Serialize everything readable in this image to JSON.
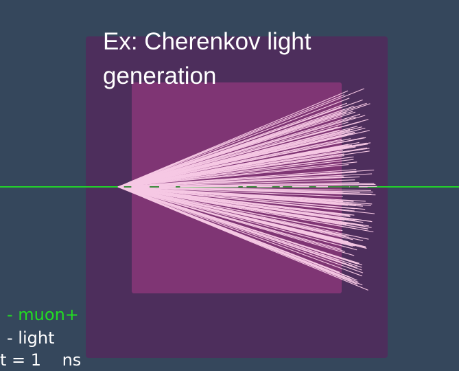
{
  "title": {
    "lines": [
      "Ex: Cherenkov light",
      "generation"
    ]
  },
  "legend": {
    "items": [
      "- muon+",
      "- light"
    ],
    "time": "t = 1    ns"
  }
}
